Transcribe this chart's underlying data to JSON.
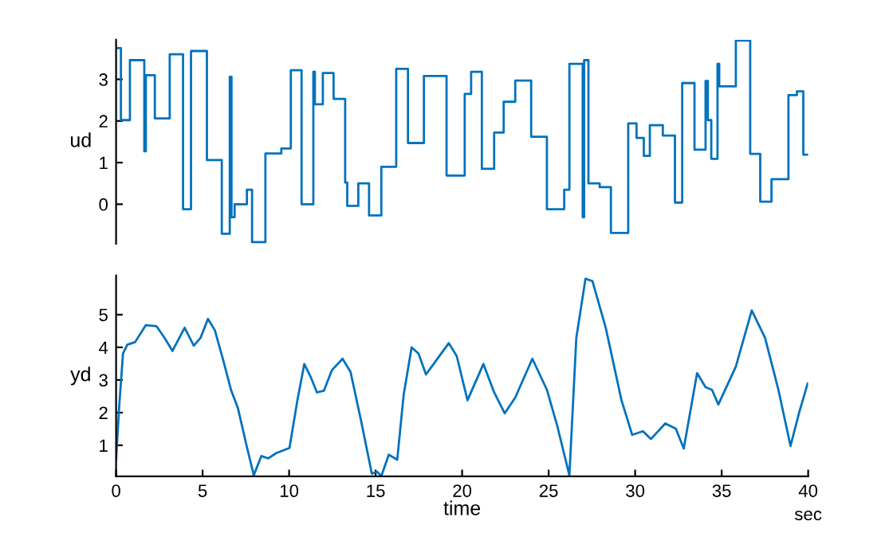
{
  "chart_data": [
    {
      "type": "step",
      "ylabel": "ud",
      "xlim": [
        0,
        40
      ],
      "ylim": [
        -0.95,
        3.95
      ],
      "yticks": [
        0,
        1,
        2,
        3
      ],
      "tick_labels": "y",
      "grid": false,
      "legend": false,
      "series": [
        {
          "color": "#0072bd",
          "x": [
            0,
            0.28,
            0.8,
            1.63,
            1.72,
            2.24,
            3.1,
            3.87,
            4.33,
            5.25,
            6.11,
            6.57,
            6.67,
            6.85,
            7.56,
            7.86,
            8.63,
            9.55,
            10.1,
            10.72,
            11.4,
            11.49,
            11.95,
            12.57,
            13.24,
            13.36,
            14.0,
            14.62,
            15.33,
            16.19,
            16.87,
            17.79,
            19.1,
            20.15,
            20.52,
            21.14,
            21.85,
            22.4,
            23.07,
            23.99,
            24.9,
            25.9,
            26.2,
            26.97,
            27.05,
            27.3,
            27.95,
            28.6,
            29.6,
            30.08,
            30.5,
            30.85,
            31.6,
            32.3,
            32.72,
            33.43,
            34.07,
            34.2,
            34.4,
            34.76,
            34.86,
            35.82,
            36.65,
            37.23,
            37.88,
            38.86,
            39.35,
            39.72,
            40
          ],
          "values": [
            3.75,
            2.02,
            3.46,
            1.27,
            3.1,
            2.06,
            3.6,
            -0.12,
            3.68,
            1.06,
            -0.71,
            3.06,
            -0.31,
            0,
            0.35,
            -0.91,
            1.22,
            1.34,
            3.22,
            0,
            3.18,
            2.4,
            3.15,
            2.53,
            0.52,
            -0.04,
            0.5,
            -0.27,
            0.9,
            3.25,
            1.47,
            3.08,
            0.69,
            2.65,
            3.18,
            0.85,
            1.72,
            2.46,
            2.97,
            1.62,
            -0.12,
            0.35,
            3.37,
            -0.31,
            3.46,
            0.5,
            0.41,
            -0.69,
            1.94,
            1.59,
            1.16,
            1.9,
            1.65,
            0.04,
            2.91,
            1.31,
            2.96,
            2.02,
            1.09,
            3.37,
            2.83,
            3.93,
            1.21,
            0.06,
            0.6,
            2.62,
            2.71,
            1.19,
            1.19
          ]
        }
      ]
    },
    {
      "type": "line",
      "xlabel": "time",
      "ylabel": "yd",
      "xlim": [
        0,
        40
      ],
      "xticks": [
        0,
        5,
        10,
        15,
        20,
        25,
        30,
        35,
        40
      ],
      "ylim": [
        0.05,
        6.2
      ],
      "yticks": [
        1,
        2,
        3,
        4,
        5
      ],
      "grid": false,
      "legend": false,
      "annotations": [
        "sec"
      ],
      "series": [
        {
          "color": "#0072bd",
          "x": [
            0,
            0.18,
            0.4,
            0.65,
            1.1,
            1.72,
            2.33,
            2.8,
            3.26,
            3.96,
            4.49,
            4.88,
            5.31,
            5.71,
            6.17,
            6.64,
            7.04,
            7.56,
            7.96,
            8.39,
            8.79,
            9.25,
            10.02,
            10.48,
            10.88,
            11.24,
            11.61,
            12.01,
            12.47,
            13.09,
            13.55,
            14.16,
            14.78,
            15.08,
            15.33,
            15.76,
            16.25,
            16.62,
            17.08,
            17.48,
            17.91,
            18.46,
            19.23,
            19.69,
            20.31,
            21.23,
            21.85,
            22.46,
            23.07,
            24.06,
            24.9,
            25.5,
            26.2,
            26.6,
            27.13,
            27.53,
            28.3,
            29.21,
            29.83,
            30.45,
            30.91,
            31.74,
            32.35,
            32.81,
            33.58,
            34.07,
            34.44,
            34.81,
            35.82,
            36.74,
            37.51,
            38.28,
            38.98,
            39.51,
            39.97
          ],
          "values": [
            0.56,
            2.2,
            3.81,
            4.08,
            4.16,
            4.68,
            4.65,
            4.29,
            3.89,
            4.6,
            4.05,
            4.29,
            4.87,
            4.52,
            3.65,
            2.7,
            2.14,
            0.95,
            0.08,
            0.67,
            0.6,
            0.76,
            0.92,
            2.38,
            3.49,
            3.1,
            2.62,
            2.67,
            3.3,
            3.65,
            3.25,
            1.75,
            0.13,
            0.19,
            0.06,
            0.71,
            0.56,
            2.54,
            4.0,
            3.81,
            3.17,
            3.57,
            4.13,
            3.73,
            2.38,
            3.49,
            2.62,
            1.98,
            2.46,
            3.65,
            2.7,
            1.59,
            0.08,
            4.29,
            6.1,
            6.03,
            4.6,
            2.38,
            1.32,
            1.43,
            1.19,
            1.67,
            1.51,
            0.9,
            3.21,
            2.78,
            2.7,
            2.25,
            3.41,
            5.13,
            4.29,
            2.7,
            0.98,
            2.06,
            2.89
          ]
        }
      ]
    }
  ]
}
